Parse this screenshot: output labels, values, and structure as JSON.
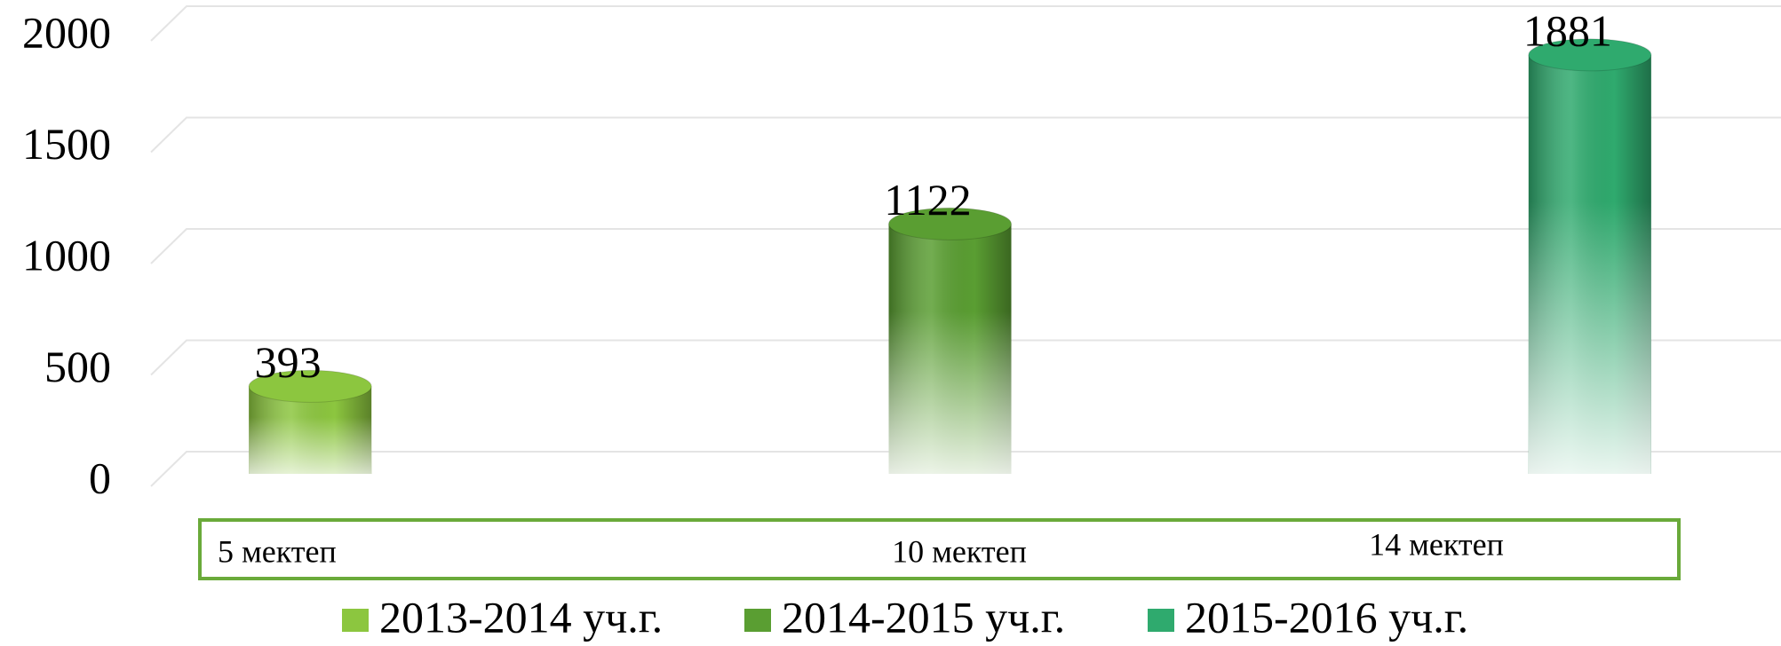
{
  "chart_data": {
    "type": "bar",
    "categories": [
      "5 мектеп",
      "10 мектеп",
      "14 мектеп"
    ],
    "series": [
      {
        "name": "2013-2014 уч.г.",
        "color": "#8cc63f",
        "values": [
          393,
          null,
          null
        ]
      },
      {
        "name": "2014-2015 уч.г.",
        "color": "#5a9e32",
        "values": [
          null,
          1122,
          null
        ]
      },
      {
        "name": "2015-2016 уч.г.",
        "color": "#2faa6e",
        "values": [
          null,
          null,
          1881
        ]
      }
    ],
    "ylim": [
      0,
      2000
    ],
    "yticks": [
      0,
      500,
      1000,
      1500,
      2000
    ],
    "grid": true,
    "legend": "bottom"
  }
}
